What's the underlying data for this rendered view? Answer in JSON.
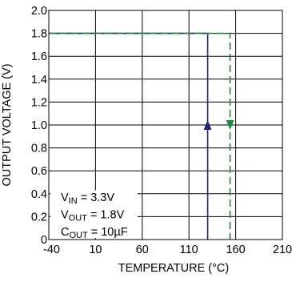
{
  "chart_data": {
    "type": "line",
    "xlabel": "TEMPERATURE (°C)",
    "ylabel": "OUTPUT VOLTAGE (V)",
    "xlim": [
      -40,
      210
    ],
    "ylim": [
      0,
      2.0
    ],
    "x_ticks": [
      -40,
      10,
      60,
      110,
      160,
      210
    ],
    "y_ticks": [
      0,
      0.2,
      0.4,
      0.6,
      0.8,
      1.0,
      1.2,
      1.4,
      1.6,
      1.8,
      2.0
    ],
    "x_tick_labels": [
      "-40",
      "10",
      "60",
      "110",
      "160",
      "210"
    ],
    "y_tick_labels": [
      "0",
      "0.2",
      "0.4",
      "0.6",
      "0.8",
      "1.0",
      "1.2",
      "1.4",
      "1.6",
      "1.8",
      "2.0"
    ],
    "grid": true,
    "series": [
      {
        "color": "#1f1f7a",
        "style": "solid",
        "direction": "up",
        "points": [
          [
            -40,
            1.8
          ],
          [
            130,
            1.8
          ],
          [
            130,
            0
          ]
        ]
      },
      {
        "color": "#1e8b3a",
        "style": "dashed",
        "direction": "down",
        "points": [
          [
            -40,
            1.8
          ],
          [
            154,
            1.8
          ],
          [
            154,
            0
          ]
        ]
      }
    ],
    "annotations": [
      {
        "main": "V",
        "sub": "IN",
        "rest": " = 3.3V"
      },
      {
        "main": "V",
        "sub": "OUT",
        "rest": " = 1.8V"
      },
      {
        "main": "C",
        "sub": "OUT",
        "rest": " = 10µF"
      }
    ]
  }
}
